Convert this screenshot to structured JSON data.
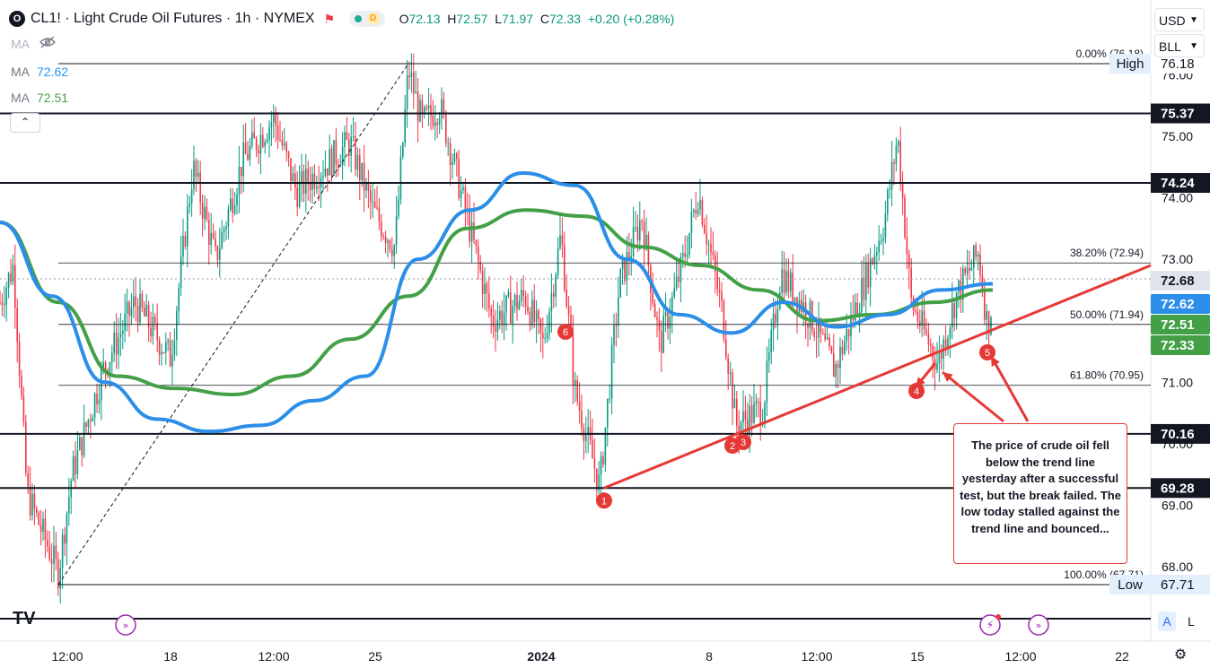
{
  "header": {
    "symbol_title": "CL1! · Light Crude Oil Futures · 1h · NYMEX",
    "logo_glyph": "O",
    "status_dot": "green",
    "data_badge": "D",
    "ohlc": {
      "o_label": "O",
      "o": "72.13",
      "h_label": "H",
      "h": "72.57",
      "l_label": "L",
      "l": "71.97",
      "c_label": "C",
      "c": "72.33",
      "change": "+0.20 (+0.28%)"
    }
  },
  "indicators": [
    {
      "name": "MA",
      "value": "",
      "hidden": true,
      "icon": "eye-off-icon"
    },
    {
      "name": "MA",
      "value": "72.62",
      "color": "#2196f3"
    },
    {
      "name": "MA",
      "value": "72.51",
      "color": "#43a047"
    }
  ],
  "controls": {
    "collapse_glyph": "⌃",
    "currency": "USD",
    "unit": "BLL",
    "auto_label": "A",
    "log_label": "L",
    "settings_icon": "gear-icon",
    "logo_mark": "TV"
  },
  "colors": {
    "up": "#089981",
    "down": "#f23645",
    "ma_fast": "#2b8ee8",
    "ma_slow": "#43a047",
    "trend": "#e53935",
    "last_price": "#43a047"
  },
  "annotation": "The price of crude oil fell below the trend line yesterday after a successful test, but the break failed. The low today stalled against the trend line and bounced...",
  "chart_data": {
    "type": "line",
    "title": "CL1! · Light Crude Oil Futures · 1h · NYMEX",
    "ylim": [
      67.05,
      77.0
    ],
    "y_ticks": [
      "68.00",
      "69.00",
      "70.00",
      "71.00",
      "72.00",
      "73.00",
      "74.00",
      "75.00",
      "76.00"
    ],
    "x_ticks": [
      "12:00",
      "18",
      "12:00",
      "25",
      "2024",
      "8",
      "12:00",
      "15",
      "12:00",
      "22"
    ],
    "horizontal_levels": [
      {
        "value": 76.18,
        "label": "76.18",
        "tag": "High"
      },
      {
        "value": 75.37,
        "label": "75.37"
      },
      {
        "value": 74.24,
        "label": "74.24"
      },
      {
        "value": 70.16,
        "label": "70.16"
      },
      {
        "value": 69.28,
        "label": "69.28"
      },
      {
        "value": 67.71,
        "label": "67.71",
        "tag": "Low"
      }
    ],
    "fibonacci": [
      {
        "ratio": "0.00%",
        "value": "76.18"
      },
      {
        "ratio": "38.20%",
        "value": "72.94"
      },
      {
        "ratio": "50.00%",
        "value": "71.94"
      },
      {
        "ratio": "61.80%",
        "value": "70.95"
      },
      {
        "ratio": "100.00%",
        "value": "67.71"
      }
    ],
    "price_tags": [
      {
        "value": 72.68,
        "label": "72.68",
        "kind": "mark"
      },
      {
        "value": 72.62,
        "label": "72.62",
        "kind": "ma-fast"
      },
      {
        "value": 72.51,
        "label": "72.51",
        "kind": "ma-slow"
      },
      {
        "value": 72.33,
        "label": "72.33",
        "kind": "last"
      }
    ],
    "trend_line": {
      "from": {
        "x": "Jan 3",
        "y": 69.28
      },
      "to": {
        "x": "Jan 17",
        "y": 72.9
      }
    },
    "touch_points": [
      "1",
      "2",
      "3",
      "4",
      "5",
      "6"
    ],
    "series": [
      {
        "name": "MA",
        "values": [
          73.6,
          72.4,
          71.0,
          70.4,
          70.2,
          70.3,
          70.7,
          71.1,
          73.0,
          73.8,
          74.4,
          74.2,
          73.0,
          72.1,
          71.8,
          72.3,
          71.9,
          72.1,
          72.5,
          72.6
        ],
        "color": "#2196f3"
      },
      {
        "name": "MA",
        "values": [
          73.6,
          72.3,
          71.1,
          70.9,
          70.8,
          71.1,
          71.7,
          72.4,
          73.5,
          73.8,
          73.7,
          73.2,
          72.9,
          72.5,
          72.0,
          72.1,
          72.3,
          72.5
        ],
        "color": "#43a047"
      }
    ]
  }
}
